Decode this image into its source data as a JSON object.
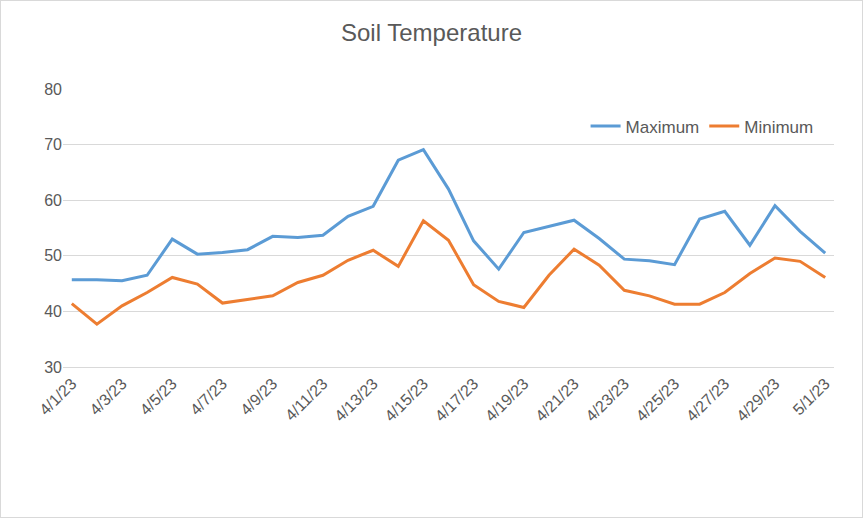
{
  "chart_data": {
    "type": "line",
    "title": "Soil Temperature",
    "categories": [
      "4/1/23",
      null,
      "4/3/23",
      null,
      "4/5/23",
      null,
      "4/7/23",
      null,
      "4/9/23",
      null,
      "4/11/23",
      null,
      "4/13/23",
      null,
      "4/15/23",
      null,
      "4/17/23",
      null,
      "4/19/23",
      null,
      "4/21/23",
      null,
      "4/23/23",
      null,
      "4/25/23",
      null,
      "4/27/23",
      null,
      "4/29/23",
      null,
      "5/1/23"
    ],
    "series": [
      {
        "name": "Maximum",
        "color": "#5b9bd5",
        "values": [
          45.7,
          45.7,
          45.5,
          46.5,
          53.0,
          50.3,
          50.6,
          51.1,
          53.5,
          53.3,
          53.7,
          57.1,
          58.9,
          67.2,
          69.1,
          62.0,
          52.7,
          47.6,
          54.2,
          55.3,
          56.4,
          53.1,
          49.4,
          49.1,
          48.4,
          56.6,
          58.0,
          51.9,
          59.0,
          54.4,
          50.5
        ]
      },
      {
        "name": "Minimum",
        "color": "#ed7d31",
        "values": [
          41.4,
          37.7,
          41.0,
          43.4,
          46.1,
          44.9,
          41.5,
          42.2,
          42.8,
          45.2,
          46.5,
          49.2,
          51.0,
          48.1,
          56.3,
          52.8,
          44.8,
          41.8,
          40.7,
          46.5,
          51.2,
          48.3,
          43.8,
          42.8,
          41.3,
          41.3,
          43.4,
          46.8,
          49.6,
          49.0,
          46.1
        ]
      }
    ],
    "ylim": [
      30,
      80
    ],
    "yticks": [
      30,
      40,
      50,
      60,
      70,
      80
    ],
    "grid": true,
    "legend": "upper right"
  }
}
